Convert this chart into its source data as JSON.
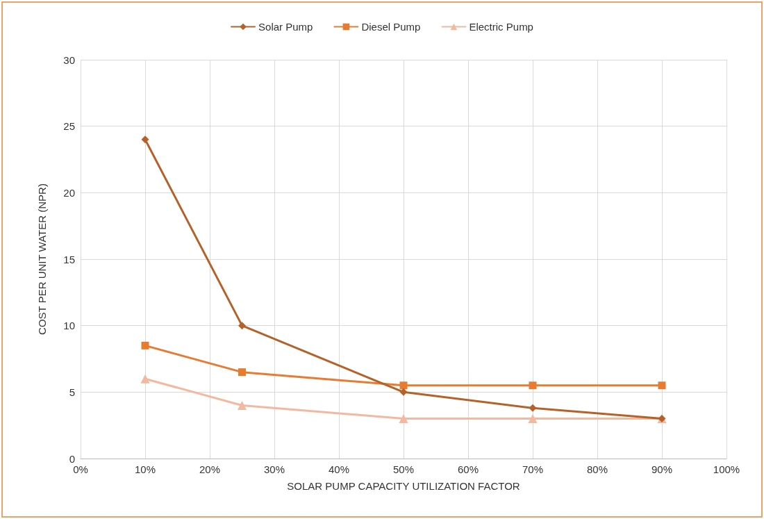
{
  "chart_data": {
    "type": "line",
    "xlabel": "SOLAR PUMP CAPACITY UTILIZATION FACTOR",
    "ylabel": "COST PER UNIT WATER (NPR)",
    "x": [
      10,
      25,
      50,
      70,
      90
    ],
    "series": [
      {
        "name": "Solar Pump",
        "color": "#b5622a",
        "marker": "diamond",
        "values": [
          24,
          10,
          5,
          3.8,
          3
        ]
      },
      {
        "name": "Diesel Pump",
        "color": "#e87b2f",
        "marker": "square",
        "values": [
          8.5,
          6.5,
          5.5,
          5.5,
          5.5
        ]
      },
      {
        "name": "Electric Pump",
        "color": "#f2b8a0",
        "marker": "triangle",
        "values": [
          6,
          4,
          3,
          3,
          3
        ]
      }
    ],
    "xlim": [
      0,
      100
    ],
    "xticks": [
      {
        "value": 0,
        "label": "0%"
      },
      {
        "value": 10,
        "label": "10%"
      },
      {
        "value": 20,
        "label": "20%"
      },
      {
        "value": 30,
        "label": "30%"
      },
      {
        "value": 40,
        "label": "40%"
      },
      {
        "value": 50,
        "label": "50%"
      },
      {
        "value": 60,
        "label": "60%"
      },
      {
        "value": 70,
        "label": "70%"
      },
      {
        "value": 80,
        "label": "80%"
      },
      {
        "value": 90,
        "label": "90%"
      },
      {
        "value": 100,
        "label": "100%"
      }
    ],
    "ylim": [
      0,
      30
    ],
    "yticks": [
      0,
      5,
      10,
      15,
      20,
      25,
      30
    ],
    "grid": true,
    "legend": "top",
    "line_style": "solid"
  }
}
